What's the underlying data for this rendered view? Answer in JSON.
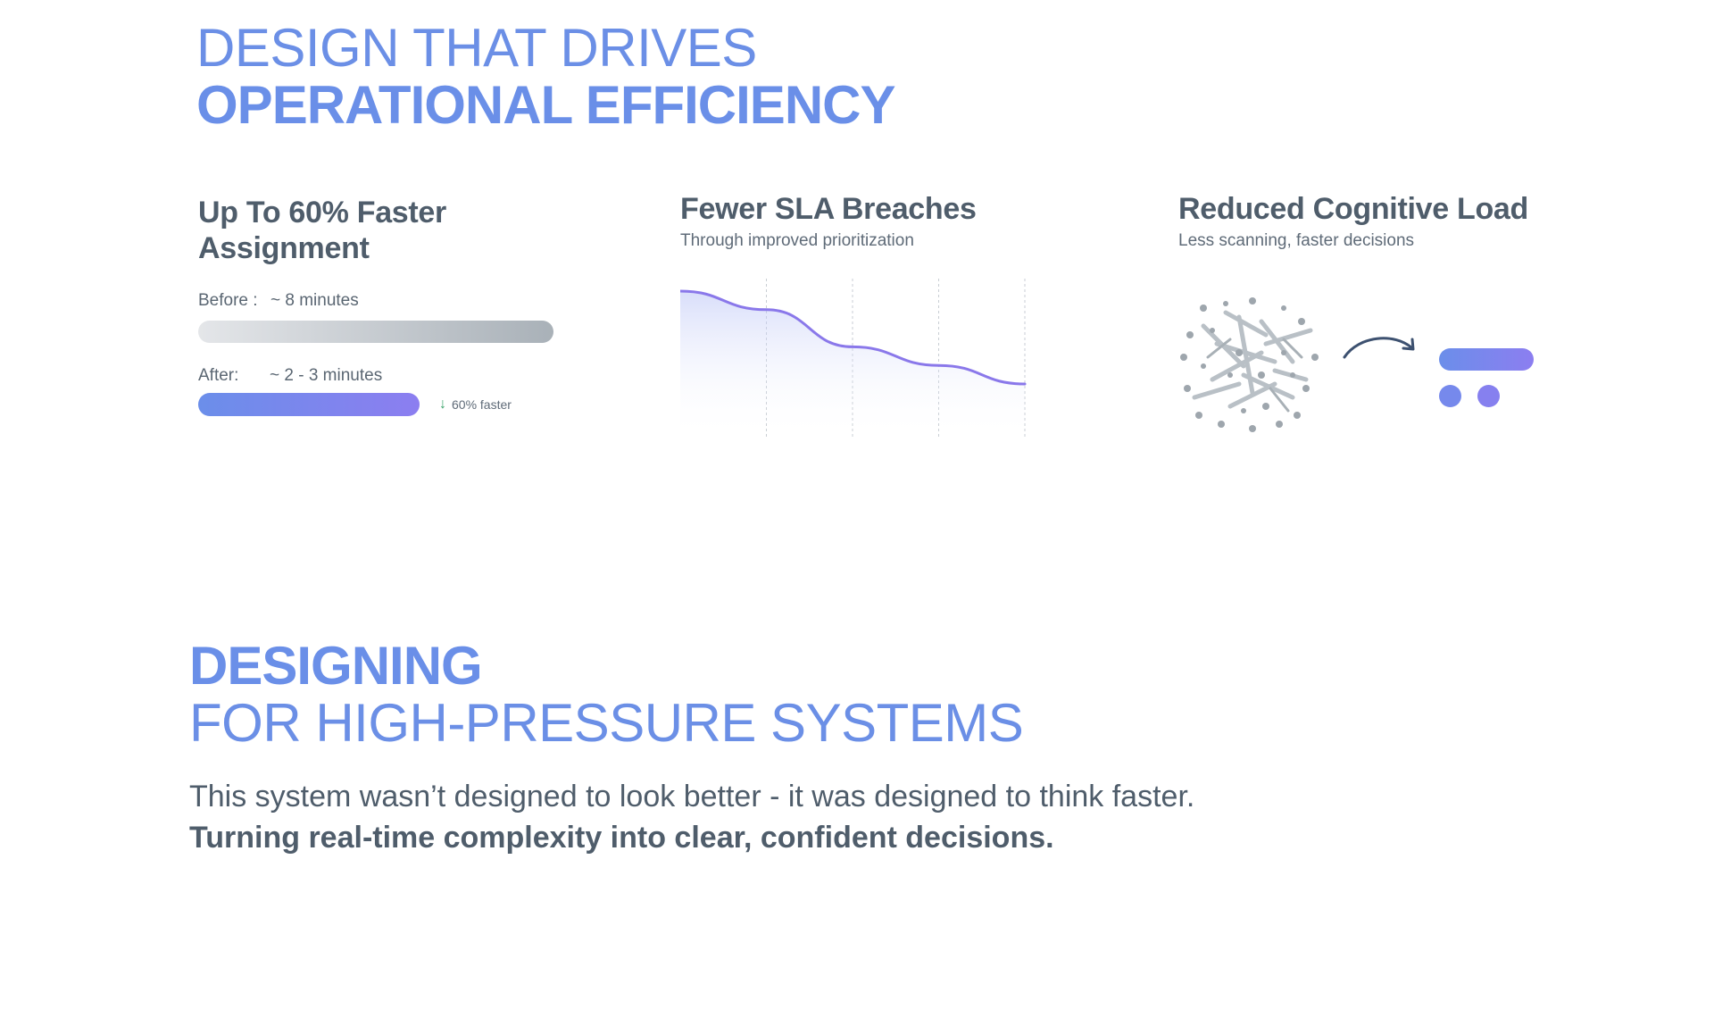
{
  "hero": {
    "line1": "DESIGN THAT DRIVES",
    "line2": "OPERATIONAL EFFICIENCY"
  },
  "metrics": {
    "assignment": {
      "title": "Up To 60% Faster Assignment",
      "before_label": "Before :",
      "before_value": "~ 8 minutes",
      "before_minutes": 8,
      "after_label": "After:",
      "after_value": "~ 2 - 3 minutes",
      "after_minutes_range": [
        2,
        3
      ],
      "badge_icon": "arrow-down-icon",
      "badge_text": "60% faster"
    },
    "sla": {
      "title": "Fewer SLA Breaches",
      "subtitle": "Through improved prioritization"
    },
    "cognitive": {
      "title": "Reduced Cognitive Load",
      "subtitle": "Less scanning, faster decisions",
      "icons": [
        "chaos-cluster-icon",
        "curved-arrow-icon",
        "clarity-bar-icon",
        "clarity-dot-icon",
        "clarity-dot-icon"
      ]
    }
  },
  "chart_data": {
    "type": "area",
    "title": "",
    "xlabel": "",
    "ylabel": "",
    "x": [
      0,
      1,
      2,
      3,
      4
    ],
    "values": [
      100,
      80,
      40,
      20,
      0
    ],
    "grid": true,
    "colors": {
      "line": "#8a78ea",
      "fill": "#b9c3f6"
    }
  },
  "section2": {
    "line1": "DESIGNING",
    "line2": "FOR HIGH-PRESSURE SYSTEMS",
    "body1": "This system wasn’t designed to look better - it was designed to think faster.",
    "body2": "Turning real-time complexity into clear, confident decisions."
  },
  "colors": {
    "accent_blue": "#6a8fe8",
    "accent_purple": "#8c7ef0",
    "text_dark": "#4f5d6b",
    "success_green": "#3aa36a"
  }
}
